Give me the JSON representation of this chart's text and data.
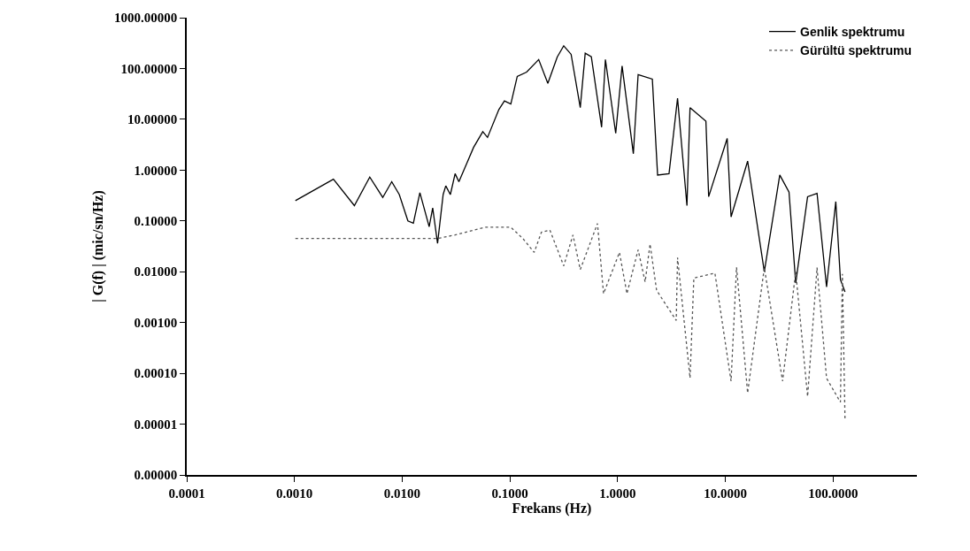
{
  "chart_data": {
    "type": "line",
    "xlabel": "Frekans (Hz)",
    "ylabel": "| G(f) | (mic/sn/Hz)",
    "log": "xy",
    "legend": "top right",
    "marker": "none",
    "xlim": [
      0.0001,
      600
    ],
    "ylim": [
      1e-06,
      1000
    ],
    "xticks": [
      {
        "value": 0.0001,
        "label": "0.0001"
      },
      {
        "value": 0.001,
        "label": "0.0010"
      },
      {
        "value": 0.01,
        "label": "0.0100"
      },
      {
        "value": 0.1,
        "label": "0.1000"
      },
      {
        "value": 1,
        "label": "1.0000"
      },
      {
        "value": 10,
        "label": "10.0000"
      },
      {
        "value": 100,
        "label": "100.0000"
      }
    ],
    "yticks": [
      {
        "value": 1e-06,
        "label": "0.00000"
      },
      {
        "value": 1e-05,
        "label": "0.00001"
      },
      {
        "value": 0.0001,
        "label": "0.00010"
      },
      {
        "value": 0.001,
        "label": "0.00100"
      },
      {
        "value": 0.01,
        "label": "0.01000"
      },
      {
        "value": 0.1,
        "label": "0.10000"
      },
      {
        "value": 1,
        "label": "1.00000"
      },
      {
        "value": 10,
        "label": "10.00000"
      },
      {
        "value": 100,
        "label": "100.00000"
      },
      {
        "value": 1000,
        "label": "1000.00000"
      }
    ],
    "series": [
      {
        "name": "Genlik spektrumu",
        "color": "#000000",
        "line_style": "solid",
        "x": [
          0.00102,
          0.0023,
          0.0036,
          0.005,
          0.0066,
          0.008,
          0.0094,
          0.0113,
          0.0127,
          0.0146,
          0.0178,
          0.0192,
          0.0213,
          0.024,
          0.0254,
          0.028,
          0.031,
          0.0336,
          0.04,
          0.046,
          0.056,
          0.062,
          0.079,
          0.089,
          0.102,
          0.117,
          0.143,
          0.185,
          0.225,
          0.275,
          0.316,
          0.37,
          0.45,
          0.5,
          0.57,
          0.71,
          0.77,
          0.96,
          1.1,
          1.4,
          1.55,
          2.1,
          2.35,
          3.0,
          3.6,
          4.4,
          4.7,
          6.6,
          7.0,
          10.4,
          11.3,
          16.1,
          23,
          32,
          39,
          45,
          58,
          71,
          87,
          106,
          117,
          129
        ],
        "values": [
          0.25,
          0.66,
          0.2,
          0.73,
          0.29,
          0.59,
          0.33,
          0.1,
          0.09,
          0.36,
          0.077,
          0.18,
          0.036,
          0.33,
          0.49,
          0.33,
          0.85,
          0.59,
          1.4,
          2.8,
          5.7,
          4.4,
          15.6,
          23,
          20,
          70,
          85,
          150,
          51,
          168,
          280,
          190,
          17,
          200,
          170,
          7,
          150,
          5.3,
          112,
          2.1,
          76,
          62,
          0.8,
          0.85,
          26,
          0.2,
          17,
          9.2,
          0.3,
          4.2,
          0.12,
          1.5,
          0.01,
          0.8,
          0.37,
          0.006,
          0.3,
          0.35,
          0.005,
          0.24,
          0.007,
          0.004
        ]
      },
      {
        "name": "Gürültü spektrumu",
        "color": "#555555",
        "line_style": "dotted",
        "x": [
          0.00102,
          0.0213,
          0.031,
          0.059,
          0.102,
          0.132,
          0.168,
          0.196,
          0.235,
          0.316,
          0.385,
          0.45,
          0.65,
          0.74,
          1.04,
          1.22,
          1.55,
          1.8,
          2.0,
          2.3,
          3.5,
          3.6,
          4.7,
          5.1,
          8.0,
          11.3,
          12.7,
          16.1,
          23,
          34,
          45,
          58,
          71,
          87,
          117,
          122,
          129
        ],
        "values": [
          0.045,
          0.045,
          0.053,
          0.075,
          0.075,
          0.045,
          0.024,
          0.06,
          0.066,
          0.013,
          0.053,
          0.011,
          0.089,
          0.0037,
          0.024,
          0.0037,
          0.027,
          0.0063,
          0.035,
          0.0043,
          0.0011,
          0.019,
          8.1e-05,
          0.0075,
          0.0094,
          7e-05,
          0.0123,
          4.1e-05,
          0.012,
          7e-05,
          0.01,
          3.5e-05,
          0.012,
          8e-05,
          2.7e-05,
          0.009,
          1.3e-05
        ]
      }
    ]
  }
}
